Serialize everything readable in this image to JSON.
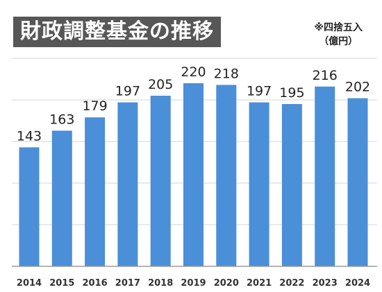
{
  "title": "財政調整基金の推移",
  "note": {
    "line1": "※四捨五入",
    "line2": "（億円）"
  },
  "chart_data": {
    "type": "bar",
    "title": "財政調整基金の推移",
    "categories": [
      "2014",
      "2015",
      "2016",
      "2017",
      "2018",
      "2019",
      "2020",
      "2021",
      "2022",
      "2023",
      "2024"
    ],
    "values": [
      143,
      163,
      179,
      197,
      205,
      220,
      218,
      197,
      195,
      216,
      202
    ],
    "ylim": [
      0,
      250
    ],
    "grid": true,
    "colors": {
      "bar": "#4a8fd8",
      "title_bg": "#575757"
    }
  }
}
